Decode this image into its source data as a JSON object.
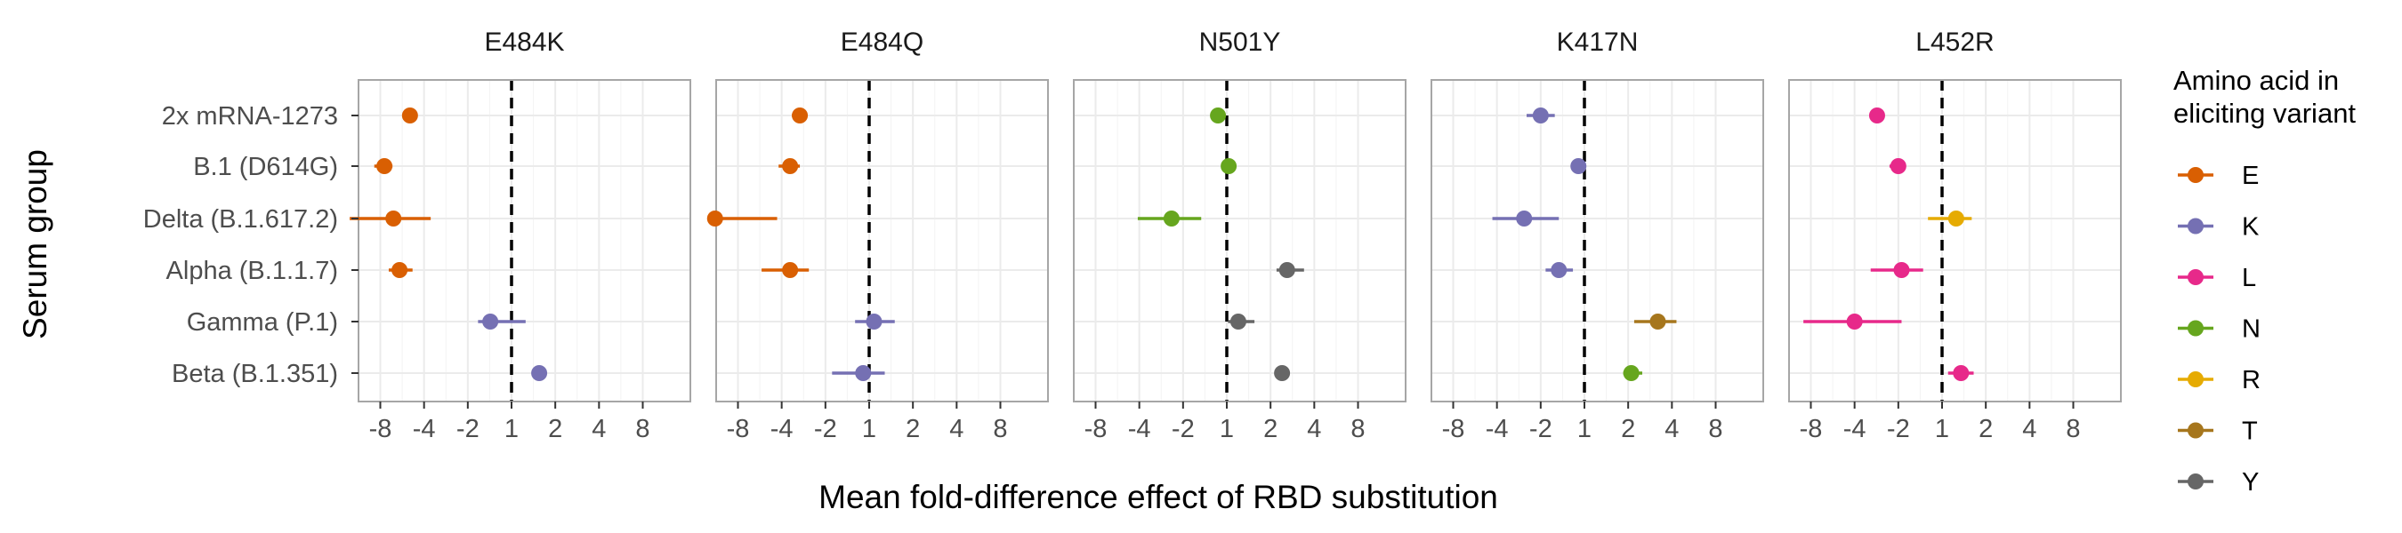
{
  "chart_data": {
    "type": "scatter",
    "ylabel": "Serum group",
    "xlabel": "Mean fold-difference effect of RBD substitution",
    "serum_groups": [
      "2x mRNA-1273",
      "B.1 (D614G)",
      "Delta (B.1.617.2)",
      "Alpha (B.1.1.7)",
      "Gamma (P.1)",
      "Beta (B.1.351)"
    ],
    "x_tick_labels": [
      "-8",
      "-4",
      "-2",
      "1",
      "2",
      "4",
      "8"
    ],
    "x_tick_values": [
      -8,
      -4,
      -2,
      1,
      2,
      4,
      8
    ],
    "x_scale": "log2-fold, 1 = no change",
    "grid": true,
    "reference_line": 1,
    "panels": [
      {
        "title": "E484K",
        "points": [
          {
            "group": "2x mRNA-1273",
            "aa": "E",
            "value": -5.0,
            "lo": -5.4,
            "hi": -4.6
          },
          {
            "group": "B.1 (D614G)",
            "aa": "E",
            "value": -7.5,
            "lo": -8.8,
            "hi": -6.6
          },
          {
            "group": "Delta (B.1.617.2)",
            "aa": "E",
            "value": -6.5,
            "lo": -13.0,
            "hi": -3.6
          },
          {
            "group": "Alpha (B.1.1.7)",
            "aa": "E",
            "value": -5.9,
            "lo": -7.0,
            "hi": -4.8
          },
          {
            "group": "Gamma (P.1)",
            "aa": "K",
            "value": -1.4,
            "lo": -1.7,
            "hi": 1.25
          },
          {
            "group": "Beta (B.1.351)",
            "aa": "K",
            "value": 1.55,
            "lo": 1.45,
            "hi": 1.7
          }
        ]
      },
      {
        "title": "E484Q",
        "points": [
          {
            "group": "2x mRNA-1273",
            "aa": "E",
            "value": -3.0,
            "lo": -3.4,
            "hi": -2.7
          },
          {
            "group": "B.1 (D614G)",
            "aa": "E",
            "value": -3.5,
            "lo": -4.2,
            "hi": -3.0
          },
          {
            "group": "Delta (B.1.617.2)",
            "aa": "E",
            "value": -11.5,
            "lo": -13.0,
            "hi": -4.3
          },
          {
            "group": "Alpha (B.1.1.7)",
            "aa": "E",
            "value": -3.5,
            "lo": -5.5,
            "hi": -2.6
          },
          {
            "group": "Gamma (P.1)",
            "aa": "K",
            "value": 1.08,
            "lo": -1.25,
            "hi": 1.5
          },
          {
            "group": "Beta (B.1.351)",
            "aa": "K",
            "value": -1.1,
            "lo": -1.8,
            "hi": 1.28
          }
        ]
      },
      {
        "title": "N501Y",
        "points": [
          {
            "group": "2x mRNA-1273",
            "aa": "N",
            "value": -1.15,
            "lo": -1.25,
            "hi": -1.05
          },
          {
            "group": "B.1 (D614G)",
            "aa": "N",
            "value": 1.03,
            "lo": 1.0,
            "hi": 1.07
          },
          {
            "group": "Delta (B.1.617.2)",
            "aa": "N",
            "value": -2.4,
            "lo": -4.1,
            "hi": -1.5
          },
          {
            "group": "Alpha (B.1.1.7)",
            "aa": "Y",
            "value": 2.6,
            "lo": 2.2,
            "hi": 3.4
          },
          {
            "group": "Gamma (P.1)",
            "aa": "Y",
            "value": 1.2,
            "lo": 1.02,
            "hi": 1.55
          },
          {
            "group": "Beta (B.1.351)",
            "aa": "Y",
            "value": 2.4,
            "lo": 2.3,
            "hi": 2.55
          }
        ]
      },
      {
        "title": "K417N",
        "points": [
          {
            "group": "2x mRNA-1273",
            "aa": "K",
            "value": -2.0,
            "lo": -2.5,
            "hi": -1.6
          },
          {
            "group": "B.1 (D614G)",
            "aa": "K",
            "value": -1.1,
            "lo": -1.18,
            "hi": -1.04
          },
          {
            "group": "Delta (B.1.617.2)",
            "aa": "K",
            "value": -2.6,
            "lo": -4.3,
            "hi": -1.5
          },
          {
            "group": "Alpha (B.1.1.7)",
            "aa": "K",
            "value": -1.5,
            "lo": -1.85,
            "hi": -1.2
          },
          {
            "group": "Gamma (P.1)",
            "aa": "T",
            "value": 3.2,
            "lo": 2.2,
            "hi": 4.3
          },
          {
            "group": "Beta (B.1.351)",
            "aa": "N",
            "value": 2.1,
            "lo": 1.85,
            "hi": 2.5
          }
        ]
      },
      {
        "title": "L452R",
        "points": [
          {
            "group": "2x mRNA-1273",
            "aa": "L",
            "value": -2.8,
            "lo": -3.1,
            "hi": -2.6
          },
          {
            "group": "B.1 (D614G)",
            "aa": "L",
            "value": -2.0,
            "lo": -2.3,
            "hi": -1.8
          },
          {
            "group": "Delta (B.1.617.2)",
            "aa": "R",
            "value": 1.25,
            "lo": -1.25,
            "hi": 1.6
          },
          {
            "group": "Alpha (B.1.1.7)",
            "aa": "L",
            "value": -1.9,
            "lo": -3.1,
            "hi": -1.35
          },
          {
            "group": "Gamma (P.1)",
            "aa": "L",
            "value": -4.0,
            "lo": -9.0,
            "hi": -1.9
          },
          {
            "group": "Beta (B.1.351)",
            "aa": "L",
            "value": 1.35,
            "lo": 1.1,
            "hi": 1.65
          }
        ]
      }
    ],
    "legend": {
      "title": "Amino acid in\neliciting variant",
      "title_lines": [
        "Amino acid in",
        "eliciting variant"
      ],
      "position": "right",
      "entries": [
        {
          "label": "E",
          "color": "#d95f02"
        },
        {
          "label": "K",
          "color": "#7570b3"
        },
        {
          "label": "L",
          "color": "#e7298a"
        },
        {
          "label": "N",
          "color": "#66a61e"
        },
        {
          "label": "R",
          "color": "#e6ab02"
        },
        {
          "label": "T",
          "color": "#a6761d"
        },
        {
          "label": "Y",
          "color": "#666666"
        }
      ]
    }
  }
}
